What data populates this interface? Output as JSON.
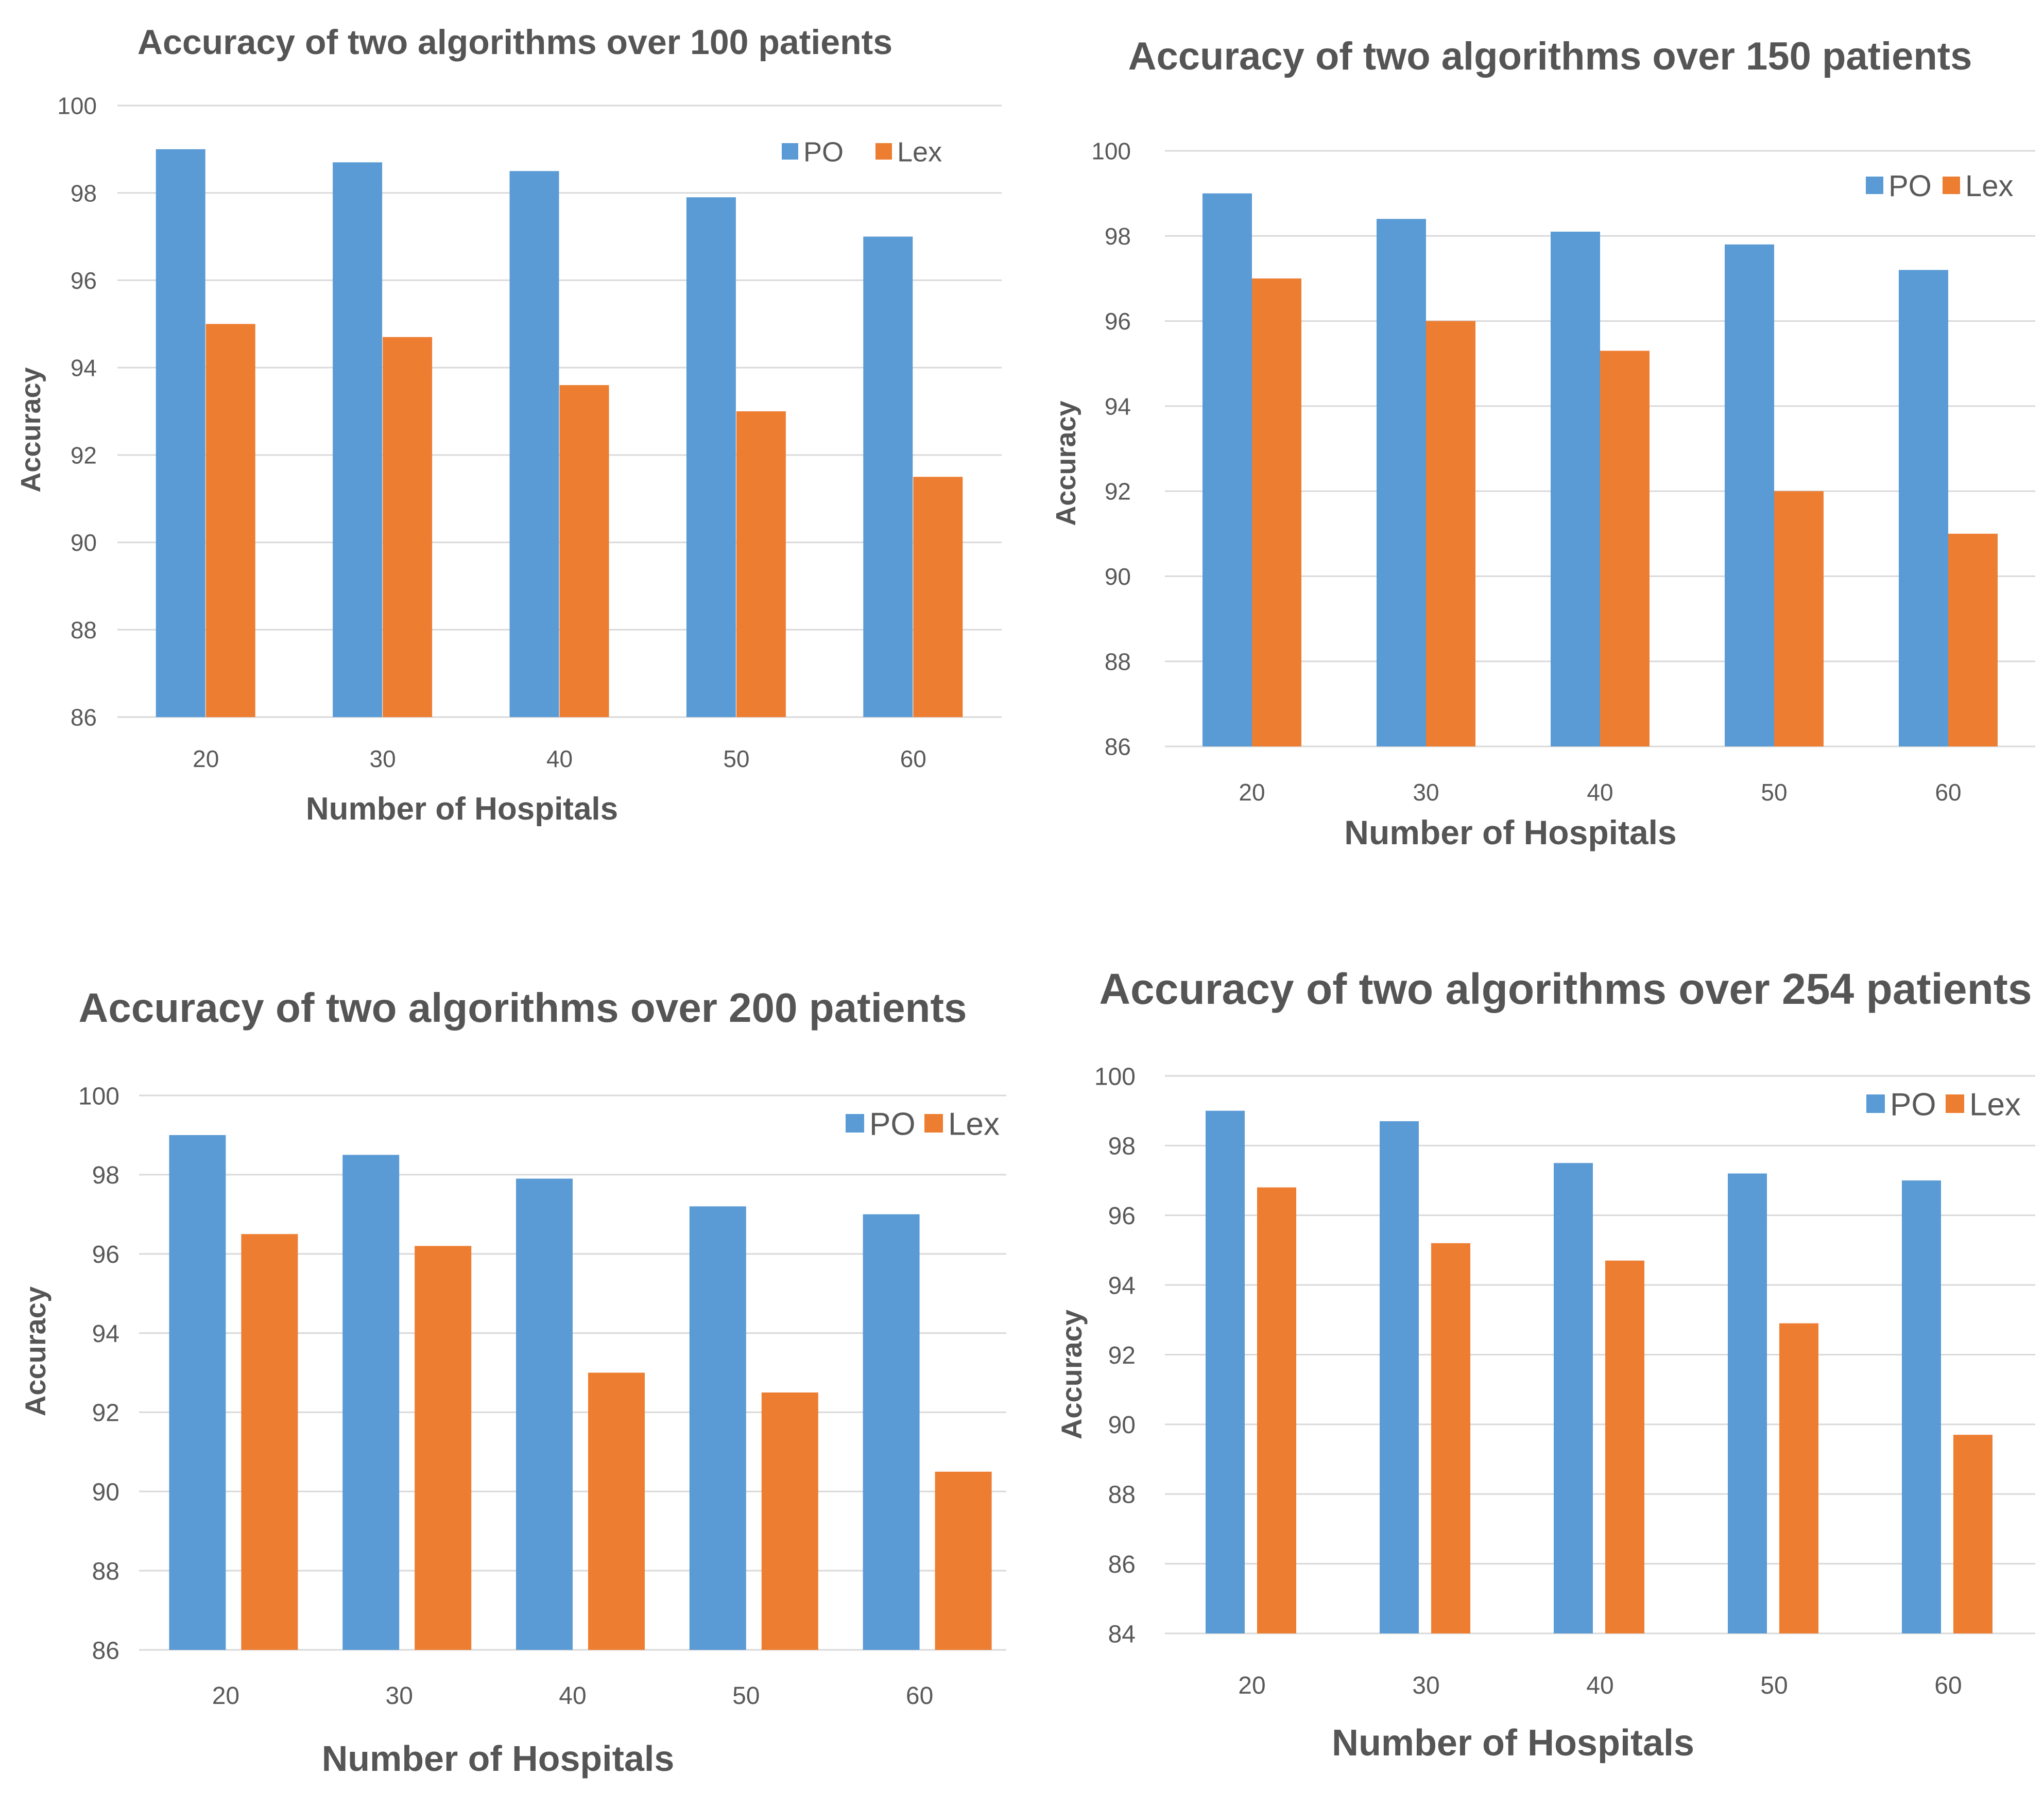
{
  "colors": {
    "po": "#5B9BD5",
    "lex": "#ED7D31",
    "grid": "#D9D9D9",
    "text": "#595959"
  },
  "chart_data": [
    {
      "type": "bar",
      "title": "Accuracy of two algorithms over 100 patients",
      "xlabel": "Number of Hospitals",
      "ylabel": "Accuracy",
      "categories": [
        "20",
        "30",
        "40",
        "50",
        "60"
      ],
      "ylim": [
        86,
        100
      ],
      "yticks": [
        "86",
        "88",
        "90",
        "92",
        "94",
        "96",
        "98",
        "100"
      ],
      "legend_position": "top-right",
      "grid": true,
      "series": [
        {
          "name": "PO",
          "values": [
            99.0,
            98.7,
            98.5,
            97.9,
            97.0
          ]
        },
        {
          "name": "Lex",
          "values": [
            95.0,
            94.7,
            93.6,
            93.0,
            91.5
          ]
        }
      ]
    },
    {
      "type": "bar",
      "title": "Accuracy of two algorithms over 150 patients",
      "xlabel": "Number of Hospitals",
      "ylabel": "Accuracy",
      "categories": [
        "20",
        "30",
        "40",
        "50",
        "60"
      ],
      "ylim": [
        86,
        100
      ],
      "yticks": [
        "86",
        "88",
        "90",
        "92",
        "94",
        "96",
        "98",
        "100"
      ],
      "legend_position": "top-right",
      "grid": true,
      "series": [
        {
          "name": "PO",
          "values": [
            99.0,
            98.4,
            98.1,
            97.8,
            97.2
          ]
        },
        {
          "name": "Lex",
          "values": [
            97.0,
            96.0,
            95.3,
            92.0,
            91.0
          ]
        }
      ]
    },
    {
      "type": "bar",
      "title": "Accuracy of two algorithms over 200 patients",
      "xlabel": "Number of Hospitals",
      "ylabel": "Accuracy",
      "categories": [
        "20",
        "30",
        "40",
        "50",
        "60"
      ],
      "ylim": [
        86,
        100
      ],
      "yticks": [
        "86",
        "88",
        "90",
        "92",
        "94",
        "96",
        "98",
        "100"
      ],
      "legend_position": "top-right",
      "grid": true,
      "series": [
        {
          "name": "PO",
          "values": [
            99.0,
            98.5,
            97.9,
            97.2,
            97.0
          ]
        },
        {
          "name": "Lex",
          "values": [
            96.5,
            96.2,
            93.0,
            92.5,
            90.5
          ]
        }
      ]
    },
    {
      "type": "bar",
      "title": "Accuracy of two algorithms over 254 patients",
      "xlabel": "Number of Hospitals",
      "ylabel": "Accuracy",
      "categories": [
        "20",
        "30",
        "40",
        "50",
        "60"
      ],
      "ylim": [
        84,
        100
      ],
      "yticks": [
        "84",
        "86",
        "88",
        "90",
        "92",
        "94",
        "96",
        "98",
        "100"
      ],
      "legend_position": "top-right",
      "grid": true,
      "series": [
        {
          "name": "PO",
          "values": [
            99.0,
            98.7,
            97.5,
            97.2,
            97.0
          ]
        },
        {
          "name": "Lex",
          "values": [
            96.8,
            95.2,
            94.7,
            92.9,
            89.7
          ]
        }
      ]
    }
  ]
}
